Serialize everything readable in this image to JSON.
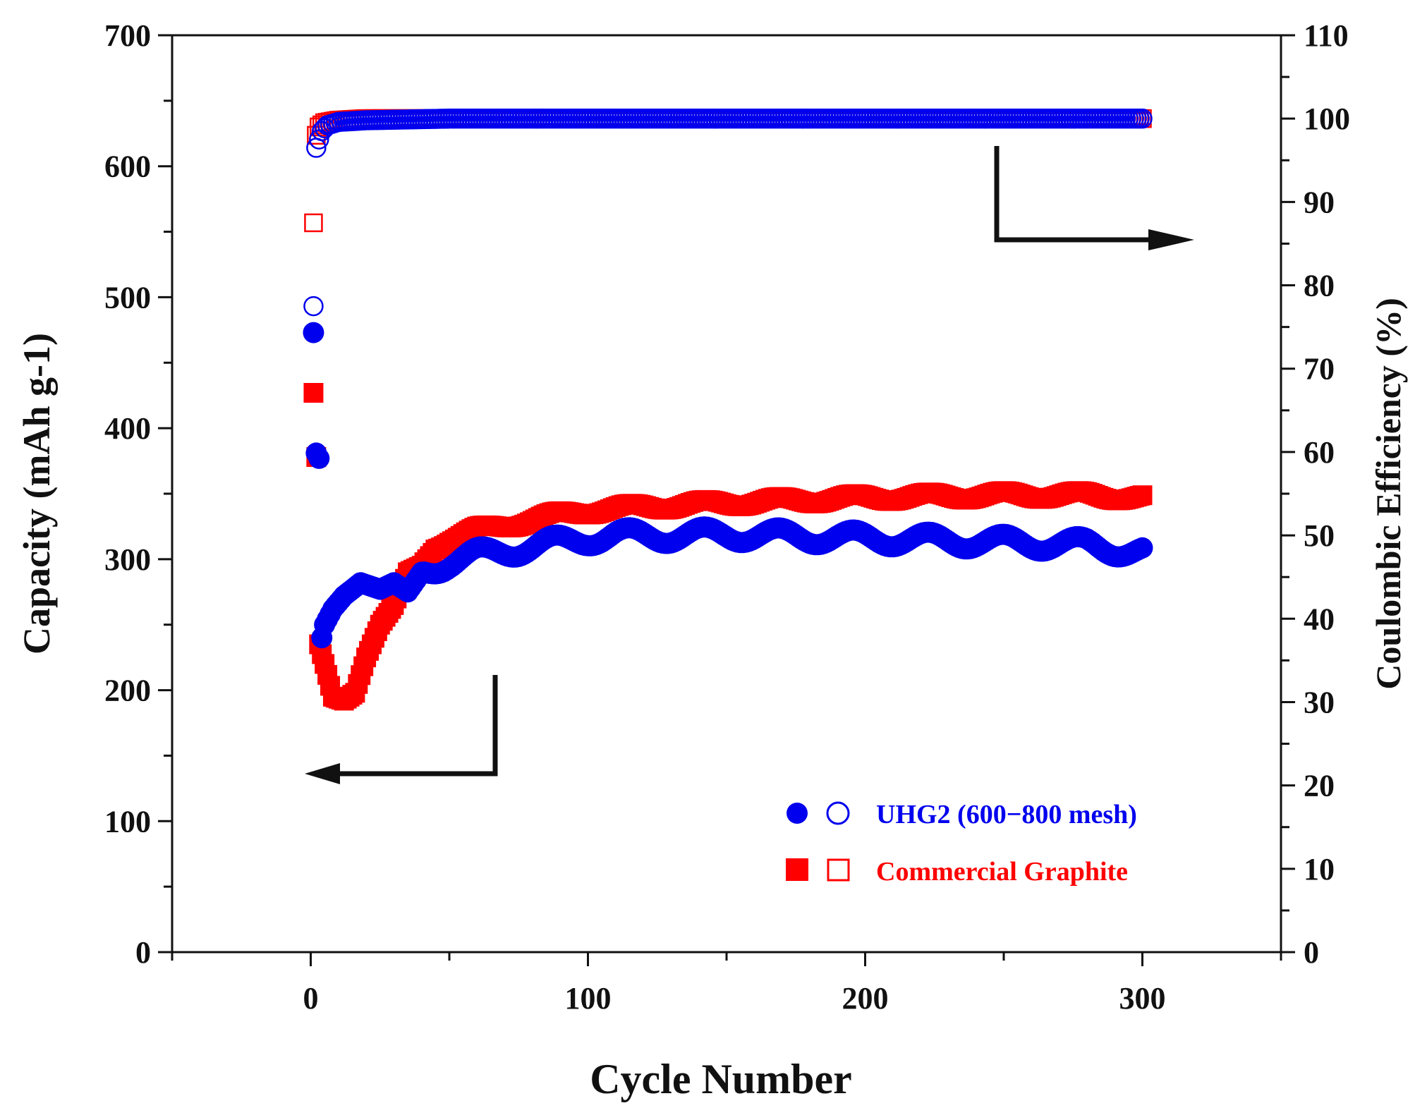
{
  "chart_data": {
    "type": "scatter",
    "xlabel": "Cycle Number",
    "ylabel": "Capacity (mAh g-1)",
    "y2label": "Coulombic Efficiency (%)",
    "xlim": [
      -50,
      350
    ],
    "ylim": [
      0,
      700
    ],
    "y2lim": [
      0,
      110
    ],
    "x_ticks": [
      0,
      100,
      200,
      300
    ],
    "y_ticks": [
      0,
      100,
      200,
      300,
      400,
      500,
      600,
      700
    ],
    "y2_ticks": [
      0,
      10,
      20,
      30,
      40,
      50,
      60,
      70,
      80,
      90,
      100,
      110
    ],
    "grid": false,
    "legend_position": "bottom-right",
    "series": [
      {
        "name": "UHG2 (600-800 mesh)",
        "legend_label": "UHG2 (600−800 mesh)",
        "color": "#0000ee",
        "axis": "left",
        "marker": "filled-circle",
        "metric": "capacity",
        "anchors": [
          [
            1,
            473
          ],
          [
            2,
            381
          ],
          [
            3,
            377
          ],
          [
            4,
            240
          ],
          [
            5,
            250
          ],
          [
            8,
            262
          ],
          [
            12,
            272
          ],
          [
            18,
            282
          ],
          [
            25,
            277
          ],
          [
            30,
            282
          ],
          [
            35,
            275
          ],
          [
            40,
            290
          ],
          [
            50,
            298
          ],
          [
            60,
            303
          ],
          [
            75,
            308
          ],
          [
            90,
            313
          ],
          [
            100,
            316
          ],
          [
            110,
            318
          ],
          [
            130,
            318
          ],
          [
            150,
            319
          ],
          [
            200,
            316
          ],
          [
            250,
            313
          ],
          [
            280,
            311
          ],
          [
            300,
            305
          ]
        ]
      },
      {
        "name": "UHG2 (600-800 mesh) efficiency",
        "color": "#0000ee",
        "axis": "right",
        "marker": "open-circle",
        "metric": "coulombic_efficiency",
        "anchors": [
          [
            1,
            77.5
          ],
          [
            2,
            96.5
          ],
          [
            3,
            97.5
          ],
          [
            4,
            98.5
          ],
          [
            6,
            99.2
          ],
          [
            10,
            99.6
          ],
          [
            20,
            99.8
          ],
          [
            50,
            100
          ],
          [
            300,
            100
          ]
        ]
      },
      {
        "name": "Commercial Graphite",
        "legend_label": "Commercial Graphite",
        "color": "#ff0000",
        "axis": "left",
        "marker": "filled-square",
        "metric": "capacity",
        "anchors": [
          [
            1,
            427
          ],
          [
            2,
            378
          ],
          [
            3,
            235
          ],
          [
            5,
            220
          ],
          [
            8,
            195
          ],
          [
            12,
            192
          ],
          [
            16,
            198
          ],
          [
            20,
            225
          ],
          [
            25,
            250
          ],
          [
            30,
            265
          ],
          [
            35,
            290
          ],
          [
            40,
            295
          ],
          [
            45,
            310
          ],
          [
            50,
            315
          ],
          [
            60,
            322
          ],
          [
            75,
            328
          ],
          [
            90,
            334
          ],
          [
            100,
            337
          ],
          [
            120,
            340
          ],
          [
            150,
            343
          ],
          [
            200,
            347
          ],
          [
            250,
            349
          ],
          [
            280,
            349
          ],
          [
            300,
            347
          ]
        ]
      },
      {
        "name": "Commercial Graphite efficiency",
        "color": "#ff0000",
        "axis": "right",
        "marker": "open-square",
        "metric": "coulombic_efficiency",
        "anchors": [
          [
            1,
            87.5
          ],
          [
            2,
            98
          ],
          [
            3,
            99
          ],
          [
            5,
            99.5
          ],
          [
            10,
            99.8
          ],
          [
            20,
            100
          ],
          [
            300,
            100
          ]
        ]
      }
    ],
    "annotations": [
      {
        "type": "arrow",
        "direction": "left",
        "meaning": "capacity series read on left axis"
      },
      {
        "type": "arrow",
        "direction": "right",
        "meaning": "coulombic efficiency series read on right axis"
      }
    ]
  }
}
